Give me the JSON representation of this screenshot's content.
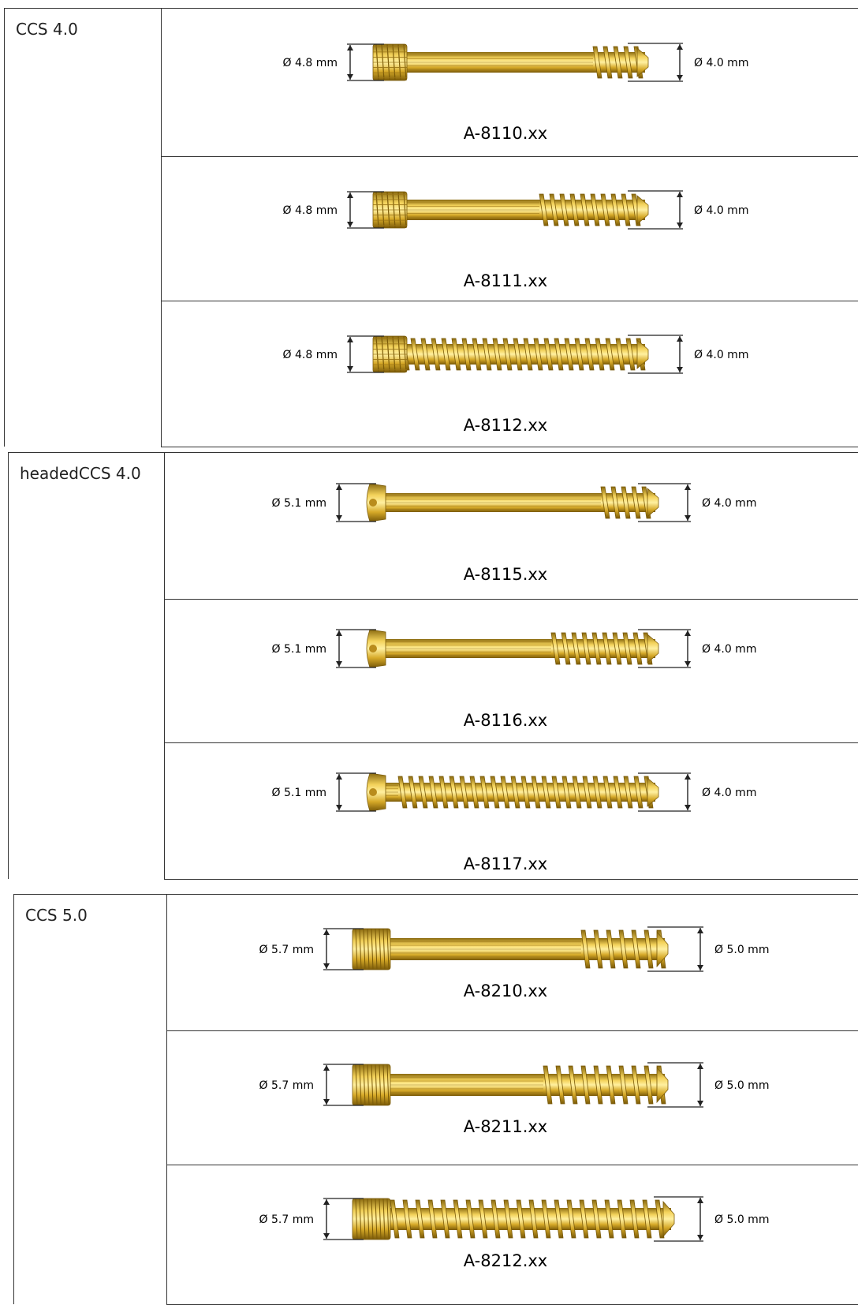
{
  "groups": [
    {
      "name": "CCS 4.0",
      "rows": [
        {
          "head_diameter": "Ø 4.8 mm",
          "tip_diameter": "Ø 4.0 mm",
          "part_number": "A-8110.xx"
        },
        {
          "head_diameter": "Ø 4.8 mm",
          "tip_diameter": "Ø 4.0 mm",
          "part_number": "A-8111.xx"
        },
        {
          "head_diameter": "Ø 4.8 mm",
          "tip_diameter": "Ø 4.0 mm",
          "part_number": "A-8112.xx"
        }
      ]
    },
    {
      "name": "headedCCS 4.0",
      "rows": [
        {
          "head_diameter": "Ø 5.1 mm",
          "tip_diameter": "Ø 4.0 mm",
          "part_number": "A-8115.xx"
        },
        {
          "head_diameter": "Ø 5.1 mm",
          "tip_diameter": "Ø 4.0 mm",
          "part_number": "A-8116.xx"
        },
        {
          "head_diameter": "Ø 5.1 mm",
          "tip_diameter": "Ø 4.0 mm",
          "part_number": "A-8117.xx"
        }
      ]
    },
    {
      "name": "CCS 5.0",
      "rows": [
        {
          "head_diameter": "Ø 5.7 mm",
          "tip_diameter": "Ø 5.0 mm",
          "part_number": "A-8210.xx"
        },
        {
          "head_diameter": "Ø 5.7 mm",
          "tip_diameter": "Ø 5.0 mm",
          "part_number": "A-8211.xx"
        },
        {
          "head_diameter": "Ø 5.7 mm",
          "tip_diameter": "Ø 5.0 mm",
          "part_number": "A-8212.xx"
        }
      ]
    }
  ]
}
